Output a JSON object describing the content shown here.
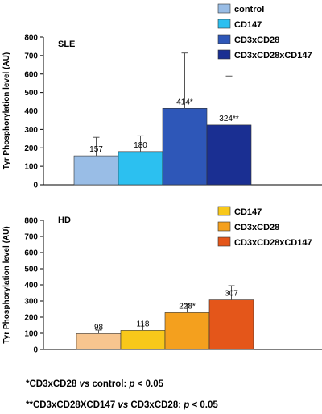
{
  "chart_data": [
    {
      "type": "bar",
      "panel_label": "SLE",
      "ylabel": "Tyr Phosphorylation level (AU)",
      "ylim": [
        0,
        800
      ],
      "yticks": [
        "0",
        "100",
        "200",
        "300",
        "400",
        "500",
        "600",
        "700",
        "800"
      ],
      "legend_position": "top-right",
      "legend": [
        "control",
        "CD147",
        "CD3xCD28",
        "CD3xCD28xCD147"
      ],
      "bars": [
        {
          "name": "control",
          "value": 157,
          "error": 100,
          "label": "157",
          "color": "#99bde6"
        },
        {
          "name": "CD147",
          "value": 180,
          "error": 85,
          "label": "180",
          "color": "#2cc0f0"
        },
        {
          "name": "CD3xCD28",
          "value": 414,
          "error": 300,
          "label": "414*",
          "color": "#2e57b8"
        },
        {
          "name": "CD3xCD28xCD147",
          "value": 324,
          "error": 265,
          "label": "324**",
          "color": "#1a2f92"
        }
      ]
    },
    {
      "type": "bar",
      "panel_label": "HD",
      "ylabel": "Tyr Phosphorylation level (AU)",
      "ylim": [
        0,
        800
      ],
      "yticks": [
        "0",
        "100",
        "200",
        "300",
        "400",
        "500",
        "600",
        "700",
        "800"
      ],
      "legend_position": "top-right",
      "legend": [
        "CD147",
        "CD3xCD28",
        "CD3xCD28xCD147"
      ],
      "bars": [
        {
          "name": "control",
          "value": 98,
          "error": 22,
          "label": "98",
          "color": "#f7c58f"
        },
        {
          "name": "CD147",
          "value": 118,
          "error": 40,
          "label": "118",
          "color": "#f8c81a"
        },
        {
          "name": "CD3xCD28",
          "value": 228,
          "error": 52,
          "label": "228*",
          "color": "#f4a01e"
        },
        {
          "name": "CD3xCD28xCD147",
          "value": 307,
          "error": 88,
          "label": "307",
          "color": "#e4561a"
        }
      ]
    }
  ],
  "footnotes": {
    "note1": {
      "prefix": "*CD3xCD28 ",
      "vs": "vs",
      "suffix": " control: ",
      "p": "p",
      "tail": " < 0.05"
    },
    "note2": {
      "prefix": "**CD3xCD28XCD147 ",
      "vs": "vs",
      "suffix": " CD3xCD28: ",
      "p": "p",
      "tail": " < 0.05"
    }
  }
}
